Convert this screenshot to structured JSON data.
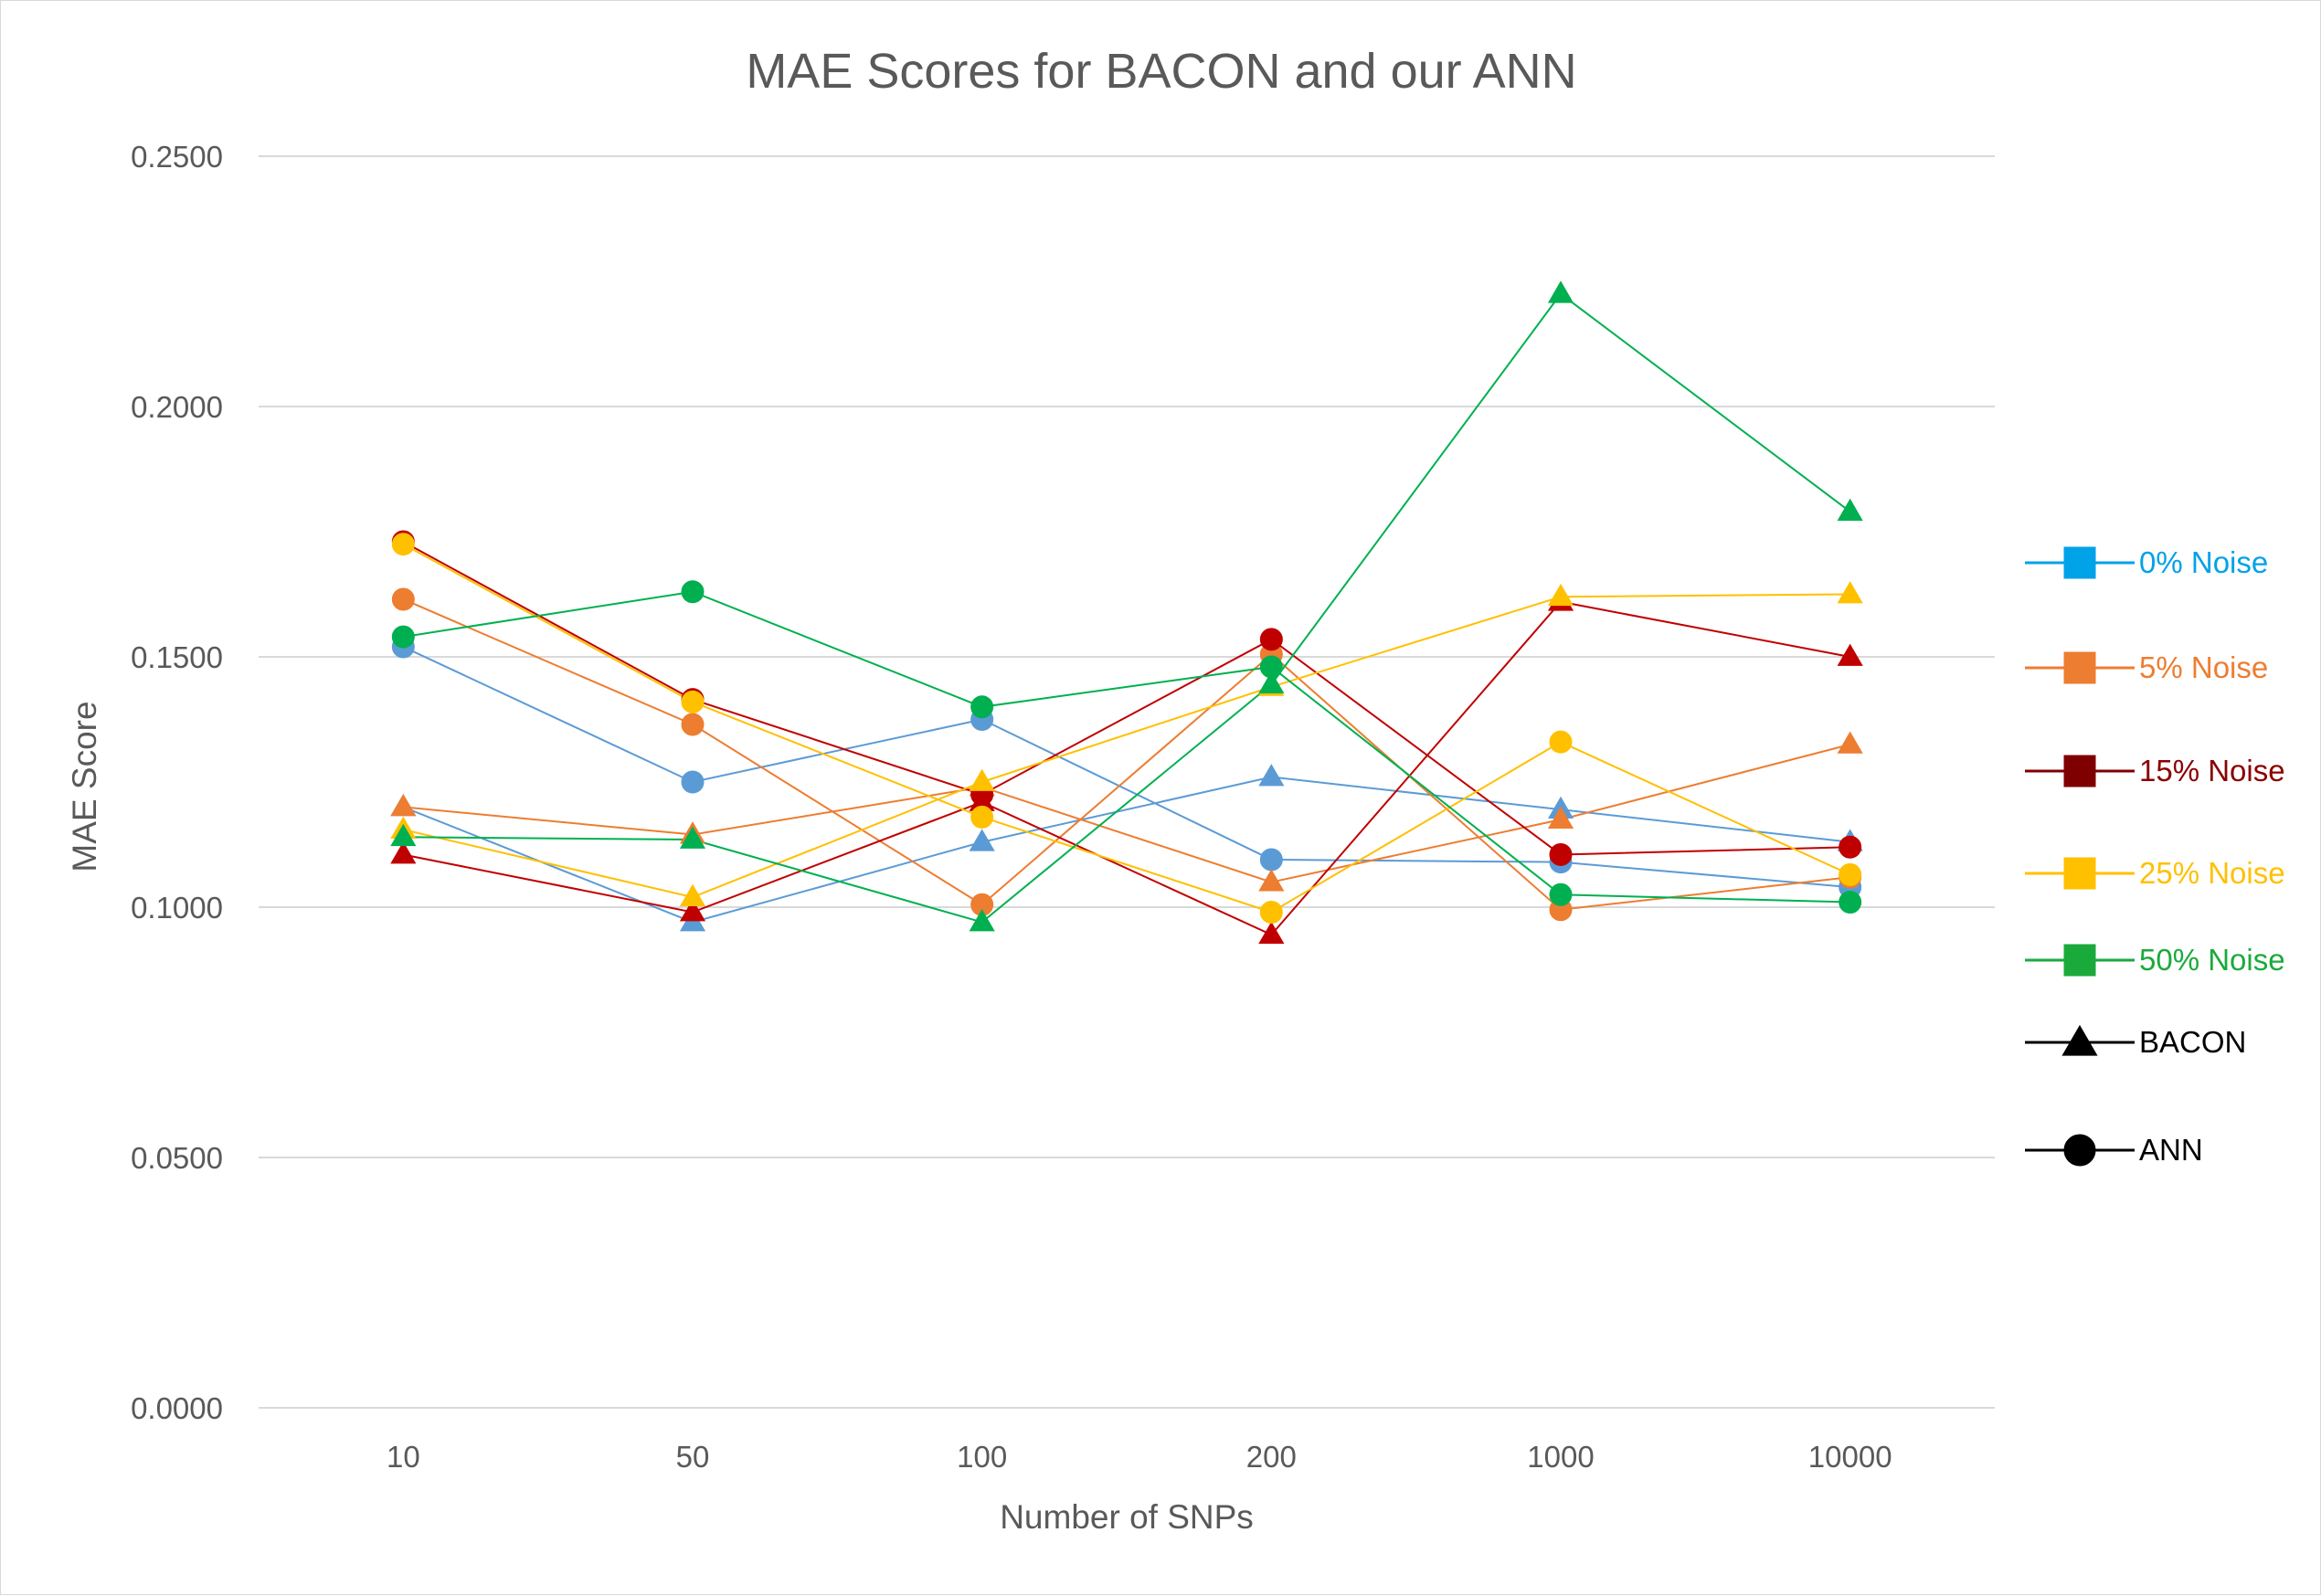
{
  "chart_data": {
    "type": "line",
    "title": "MAE Scores for BACON and our ANN",
    "xlabel": "Number of SNPs",
    "ylabel": "MAE Score",
    "categories": [
      "10",
      "50",
      "100",
      "200",
      "1000",
      "10000"
    ],
    "ylim": [
      0,
      0.25
    ],
    "yticks": [
      "0.0000",
      "0.0500",
      "0.1000",
      "0.1500",
      "0.2000",
      "0.2500"
    ],
    "grid": true,
    "legend_position": "right",
    "legend": [
      {
        "label": "0% Noise",
        "color": "#00a2e8",
        "marker": "square"
      },
      {
        "label": "5% Noise",
        "color": "#ed7d31",
        "marker": "square"
      },
      {
        "label": "15% Noise",
        "color": "#7f0000",
        "text_color": "#8b0000",
        "marker": "square"
      },
      {
        "label": "25% Noise",
        "color": "#ffc000",
        "marker": "square"
      },
      {
        "label": "50% Noise",
        "color": "#1aaa3c",
        "marker": "square"
      },
      {
        "label": "BACON",
        "color": "#000000",
        "marker": "triangle"
      },
      {
        "label": "ANN",
        "color": "#000000",
        "marker": "circle"
      }
    ],
    "series": [
      {
        "noise": "0%",
        "model": "BACON",
        "color": "#5b9bd5",
        "marker": "triangle",
        "values": [
          0.12,
          0.097,
          0.113,
          0.126,
          0.1195,
          0.113
        ]
      },
      {
        "noise": "0%",
        "model": "ANN",
        "color": "#5b9bd5",
        "marker": "circle",
        "values": [
          0.152,
          0.125,
          0.1375,
          0.1095,
          0.109,
          0.104
        ]
      },
      {
        "noise": "5%",
        "model": "BACON",
        "color": "#ed7d31",
        "marker": "triangle",
        "values": [
          0.12,
          0.1145,
          0.124,
          0.105,
          0.1175,
          0.1325
        ]
      },
      {
        "noise": "5%",
        "model": "ANN",
        "color": "#ed7d31",
        "marker": "circle",
        "values": [
          0.1615,
          0.1365,
          0.1005,
          0.1505,
          0.0995,
          0.106
        ]
      },
      {
        "noise": "15%",
        "model": "BACON",
        "color": "#c00000",
        "marker": "triangle",
        "values": [
          0.1105,
          0.099,
          0.121,
          0.0945,
          0.161,
          0.15
        ]
      },
      {
        "noise": "15%",
        "model": "ANN",
        "color": "#c00000",
        "marker": "circle",
        "values": [
          0.173,
          0.1415,
          0.1225,
          0.1535,
          0.1105,
          0.112
        ]
      },
      {
        "noise": "25%",
        "model": "BACON",
        "color": "#ffc000",
        "marker": "triangle",
        "values": [
          0.1155,
          0.102,
          0.125,
          0.144,
          0.162,
          0.1625
        ]
      },
      {
        "noise": "25%",
        "model": "ANN",
        "color": "#ffc000",
        "marker": "circle",
        "values": [
          0.1725,
          0.141,
          0.118,
          0.099,
          0.133,
          0.1065
        ]
      },
      {
        "noise": "50%",
        "model": "BACON",
        "color": "#00b050",
        "marker": "triangle",
        "values": [
          0.114,
          0.1135,
          0.097,
          0.1445,
          0.2225,
          0.179
        ]
      },
      {
        "noise": "50%",
        "model": "ANN",
        "color": "#00b050",
        "marker": "circle",
        "values": [
          0.154,
          0.163,
          0.14,
          0.148,
          0.1025,
          0.101
        ]
      }
    ]
  }
}
